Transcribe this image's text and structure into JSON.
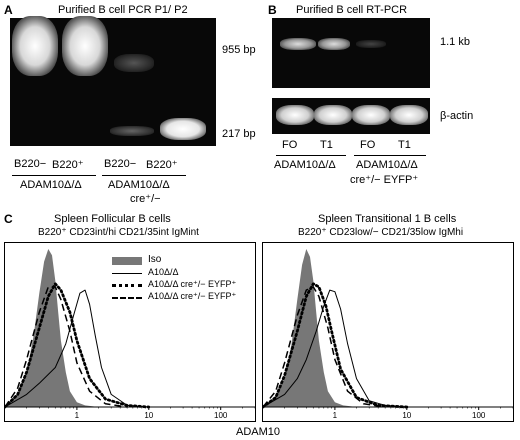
{
  "panel_a": {
    "letter": "A",
    "title": "Purified B cell PCR P1/ P2",
    "size_marker_top": "955 bp",
    "size_marker_bottom": "217 bp",
    "lanes": [
      "B220−",
      "B220⁺",
      "B220−",
      "B220⁺"
    ],
    "group_1": "ADAM10Δ/Δ",
    "group_2_line1": "ADAM10Δ/Δ",
    "group_2_line2": "cre⁺/−"
  },
  "panel_b": {
    "letter": "B",
    "title": "Purified B cell RT-PCR",
    "band_label": "1.1 kb",
    "control_label": "β-actin",
    "lanes": [
      "FO",
      "T1",
      "FO",
      "T1"
    ],
    "group_1": "ADAM10Δ/Δ",
    "group_2_line1": "ADAM10Δ/Δ",
    "group_2_line2": "cre⁺/− EYFP⁺"
  },
  "panel_c": {
    "letter": "C",
    "x_axis_label": "ADAM10",
    "legend": [
      "Iso",
      "A10Δ/Δ",
      "A10Δ/Δ cre⁺/− EYFP⁺",
      "A10Δ/Δ cre⁺/− EYFP⁺"
    ],
    "left_title": "Spleen Follicular B cells",
    "left_subtitle": "B220⁺ CD23int/hi CD21/35int IgMint",
    "right_title": "Spleen Transitional 1 B cells",
    "right_subtitle": "B220⁺ CD23low/− CD21/35low IgMhi",
    "tick_labels": [
      "1",
      "10",
      "100"
    ],
    "colors": {
      "iso_fill": "#777777",
      "gel": "#080808"
    }
  },
  "chart_data": [
    {
      "type": "area",
      "title": "Spleen Follicular B cells",
      "xlabel": "ADAM10",
      "x_scale": "log",
      "xlim": [
        0.1,
        300
      ],
      "series": [
        {
          "name": "Iso",
          "x": [
            0.1,
            0.15,
            0.2,
            0.25,
            0.3,
            0.35,
            0.4,
            0.45,
            0.5,
            0.55,
            0.6,
            0.7,
            0.8,
            1.0,
            1.3,
            2,
            3
          ],
          "y": [
            0,
            8,
            22,
            45,
            72,
            92,
            100,
            96,
            80,
            60,
            42,
            22,
            10,
            3,
            1,
            0,
            0
          ]
        },
        {
          "name": "A10Δ/Δ",
          "x": [
            0.1,
            0.2,
            0.3,
            0.5,
            0.7,
            0.9,
            1.1,
            1.3,
            1.5,
            1.8,
            2.2,
            3,
            5,
            10
          ],
          "y": [
            0,
            8,
            15,
            25,
            40,
            58,
            72,
            74,
            65,
            45,
            25,
            8,
            1,
            0
          ]
        },
        {
          "name": "A10Δ/Δ cre⁺/− EYFP⁺ (dotted)",
          "x": [
            0.1,
            0.15,
            0.2,
            0.3,
            0.4,
            0.5,
            0.6,
            0.8,
            1.0,
            1.5,
            2.5,
            5,
            10
          ],
          "y": [
            0,
            8,
            22,
            50,
            70,
            78,
            74,
            60,
            42,
            18,
            5,
            1,
            0
          ]
        },
        {
          "name": "A10Δ/Δ cre⁺/− EYFP⁺ (dashed)",
          "x": [
            0.1,
            0.15,
            0.2,
            0.3,
            0.4,
            0.5,
            0.6,
            0.8,
            1.0,
            1.5,
            2.5,
            5
          ],
          "y": [
            0,
            12,
            30,
            60,
            76,
            76,
            68,
            48,
            28,
            10,
            2,
            0
          ]
        }
      ]
    },
    {
      "type": "area",
      "title": "Spleen Transitional 1 B cells",
      "xlabel": "ADAM10",
      "x_scale": "log",
      "xlim": [
        0.1,
        300
      ],
      "series": [
        {
          "name": "Iso",
          "x": [
            0.1,
            0.15,
            0.2,
            0.25,
            0.3,
            0.35,
            0.4,
            0.45,
            0.5,
            0.55,
            0.6,
            0.7,
            0.8,
            1.0,
            1.3,
            2,
            3
          ],
          "y": [
            0,
            6,
            18,
            40,
            68,
            90,
            100,
            95,
            80,
            60,
            42,
            22,
            10,
            3,
            1,
            0,
            0
          ]
        },
        {
          "name": "A10Δ/Δ",
          "x": [
            0.1,
            0.2,
            0.3,
            0.4,
            0.55,
            0.7,
            0.85,
            1.0,
            1.2,
            1.5,
            2,
            3,
            5,
            10
          ],
          "y": [
            0,
            8,
            18,
            30,
            48,
            64,
            74,
            73,
            62,
            40,
            18,
            4,
            1,
            0
          ]
        },
        {
          "name": "A10Δ/Δ cre⁺/− EYFP⁺ (dotted)",
          "x": [
            0.1,
            0.15,
            0.2,
            0.3,
            0.4,
            0.5,
            0.6,
            0.75,
            0.9,
            1.2,
            2,
            4,
            10
          ],
          "y": [
            0,
            6,
            20,
            48,
            70,
            78,
            76,
            64,
            48,
            24,
            6,
            1,
            0
          ]
        },
        {
          "name": "A10Δ/Δ cre⁺/− EYFP⁺ (dashed)",
          "x": [
            0.1,
            0.15,
            0.2,
            0.3,
            0.4,
            0.5,
            0.6,
            0.8,
            1.0,
            1.5,
            2.5,
            5
          ],
          "y": [
            0,
            10,
            28,
            58,
            74,
            76,
            70,
            50,
            30,
            10,
            2,
            0
          ]
        }
      ]
    }
  ]
}
